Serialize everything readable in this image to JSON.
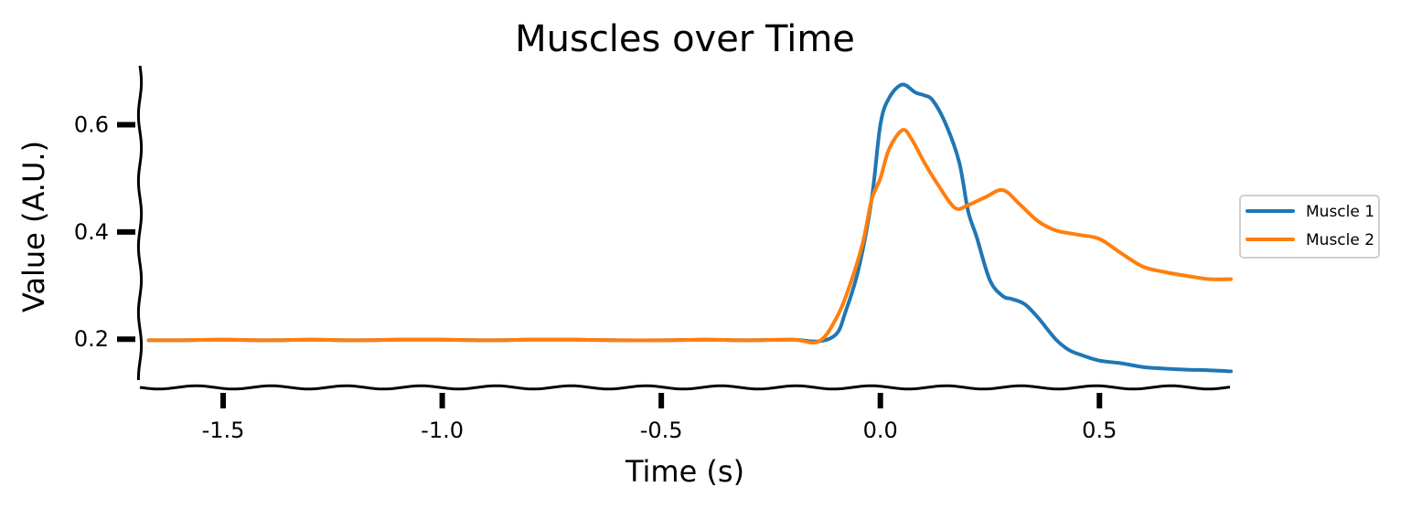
{
  "chart_data": {
    "type": "line",
    "title": "Muscles over Time",
    "xlabel": "Time (s)",
    "ylabel": "Value (A.U.)",
    "xlim": [
      -1.69,
      0.8
    ],
    "ylim": [
      0.11,
      0.71
    ],
    "xticks": [
      -1.5,
      -1.0,
      -0.5,
      0.0,
      0.5
    ],
    "xtick_labels": [
      "-1.5",
      "-1.0",
      "-0.5",
      "0.0",
      "0.5"
    ],
    "yticks": [
      0.2,
      0.4,
      0.6
    ],
    "ytick_labels": [
      "0.2",
      "0.4",
      "0.6"
    ],
    "grid": false,
    "legend_position": "right",
    "series": [
      {
        "name": "Muscle 1",
        "color": "#1f77b4",
        "x": [
          -1.67,
          -1.6,
          -1.5,
          -1.4,
          -1.3,
          -1.2,
          -1.1,
          -1.0,
          -0.9,
          -0.8,
          -0.7,
          -0.6,
          -0.5,
          -0.4,
          -0.3,
          -0.2,
          -0.14,
          -0.1,
          -0.08,
          -0.05,
          -0.02,
          0.0,
          0.02,
          0.05,
          0.08,
          0.1,
          0.12,
          0.15,
          0.18,
          0.2,
          0.22,
          0.25,
          0.28,
          0.3,
          0.33,
          0.36,
          0.4,
          0.43,
          0.46,
          0.5,
          0.55,
          0.6,
          0.65,
          0.7,
          0.75,
          0.8
        ],
        "y": [
          0.198,
          0.198,
          0.199,
          0.198,
          0.199,
          0.198,
          0.199,
          0.199,
          0.198,
          0.199,
          0.199,
          0.198,
          0.198,
          0.199,
          0.198,
          0.199,
          0.196,
          0.21,
          0.25,
          0.33,
          0.46,
          0.6,
          0.65,
          0.675,
          0.66,
          0.655,
          0.645,
          0.6,
          0.53,
          0.44,
          0.39,
          0.31,
          0.28,
          0.275,
          0.265,
          0.24,
          0.2,
          0.18,
          0.17,
          0.16,
          0.155,
          0.148,
          0.145,
          0.143,
          0.142,
          0.14
        ]
      },
      {
        "name": "Muscle 2",
        "color": "#ff7f0e",
        "x": [
          -1.67,
          -1.6,
          -1.5,
          -1.4,
          -1.3,
          -1.2,
          -1.1,
          -1.0,
          -0.9,
          -0.8,
          -0.7,
          -0.6,
          -0.5,
          -0.4,
          -0.3,
          -0.2,
          -0.14,
          -0.1,
          -0.07,
          -0.04,
          -0.02,
          0.0,
          0.02,
          0.05,
          0.07,
          0.1,
          0.13,
          0.17,
          0.2,
          0.24,
          0.28,
          0.32,
          0.36,
          0.4,
          0.45,
          0.5,
          0.55,
          0.6,
          0.65,
          0.7,
          0.75,
          0.8
        ],
        "y": [
          0.198,
          0.198,
          0.199,
          0.198,
          0.199,
          0.198,
          0.199,
          0.199,
          0.198,
          0.199,
          0.199,
          0.198,
          0.198,
          0.199,
          0.198,
          0.199,
          0.196,
          0.24,
          0.3,
          0.38,
          0.46,
          0.5,
          0.555,
          0.59,
          0.575,
          0.53,
          0.49,
          0.445,
          0.45,
          0.465,
          0.478,
          0.45,
          0.42,
          0.403,
          0.395,
          0.387,
          0.36,
          0.335,
          0.325,
          0.318,
          0.312,
          0.312
        ]
      }
    ]
  }
}
